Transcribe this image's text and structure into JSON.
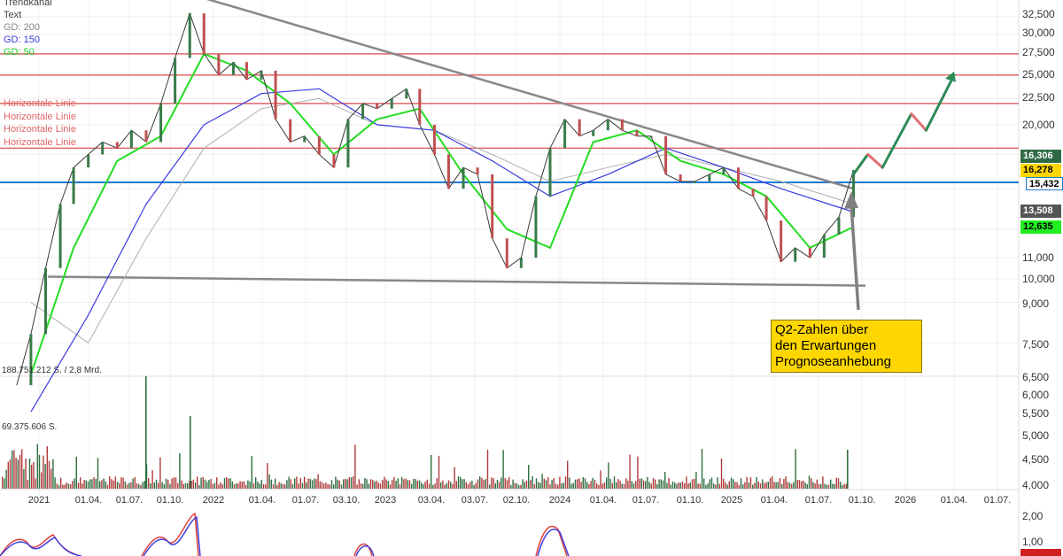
{
  "legend": {
    "title": "Trendkanal",
    "text": "Text",
    "gd200": "GD: 200",
    "gd150": "GD: 150",
    "gd50": "GD: 50",
    "colors": {
      "gd200": "#aaaaaa",
      "gd150": "#3a3ae0",
      "gd50": "#22dd22"
    }
  },
  "horizontal_line_labels": [
    "Horizontale Linie",
    "Horizontale Linie",
    "Horizontale Linie",
    "Horizontale Linie"
  ],
  "annotation": {
    "lines": [
      "Q2-Zahlen über",
      "den Erwartungen",
      "Prognoseanhebung"
    ]
  },
  "volume_labels": {
    "upper": "188.751.212 S. / 2,8 Mrd.",
    "lower": "69.375.606 S."
  },
  "price_tags": [
    {
      "value": "16,306",
      "bg": "#2e6b44",
      "fg": "#ffffff"
    },
    {
      "value": "16,278",
      "bg": "#ffd700",
      "fg": "#000000"
    },
    {
      "value": "15,432",
      "bg": "#ffffff",
      "fg": "#000000"
    },
    {
      "value": "13,508",
      "bg": "#555555",
      "fg": "#ffffff"
    },
    {
      "value": "12,635",
      "bg": "#22ee22",
      "fg": "#000000"
    }
  ],
  "chart_data": {
    "type": "line",
    "y_scale": "log",
    "y_ticks": [
      "32,500",
      "30,000",
      "27,500",
      "25,000",
      "22,500",
      "20,000",
      "16,306",
      "13,508",
      "11,000",
      "10,000",
      "9,000",
      "7,500",
      "6,500",
      "6,000",
      "5,500",
      "5,000",
      "4,500",
      "4,000",
      "2,00",
      "1,00"
    ],
    "x_ticks": [
      "2021",
      "01.04.",
      "01.07.",
      "01.10.",
      "2022",
      "01.04.",
      "01.07.",
      "03.10.",
      "2023",
      "03.04.",
      "03.07.",
      "02.10.",
      "2024",
      "01.04.",
      "01.07.",
      "01.10.",
      "2025",
      "01.04.",
      "01.07.",
      "01.10.",
      "2026",
      "01.04.",
      "01.07."
    ],
    "horizontal_lines": [
      {
        "value": 27500,
        "color": "#e06666"
      },
      {
        "value": 25000,
        "color": "#e06666"
      },
      {
        "value": 22000,
        "color": "#e06666"
      },
      {
        "value": 18000,
        "color": "#e06666"
      },
      {
        "value": 15432,
        "color": "#1e78d0"
      }
    ],
    "trendlines": [
      {
        "name": "resistance",
        "from": {
          "date": "2021-11-15",
          "value": 36000
        },
        "to": {
          "date": "2025-09-15",
          "value": 15000
        }
      },
      {
        "name": "support",
        "from": {
          "date": "2021-01-20",
          "value": 10100
        },
        "to": {
          "date": "2025-10-10",
          "value": 9700
        }
      }
    ],
    "price_series": [
      {
        "date": "2020-11",
        "value": 6200
      },
      {
        "date": "2020-12",
        "value": 7800
      },
      {
        "date": "2021-01",
        "value": 10500
      },
      {
        "date": "2021-02",
        "value": 14000
      },
      {
        "date": "2021-03",
        "value": 16500
      },
      {
        "date": "2021-04",
        "value": 17500
      },
      {
        "date": "2021-05",
        "value": 18500
      },
      {
        "date": "2021-06",
        "value": 18000
      },
      {
        "date": "2021-07",
        "value": 19500
      },
      {
        "date": "2021-08",
        "value": 18500
      },
      {
        "date": "2021-09",
        "value": 22000
      },
      {
        "date": "2021-10",
        "value": 27000
      },
      {
        "date": "2021-11",
        "value": 33000
      },
      {
        "date": "2021-12",
        "value": 27500
      },
      {
        "date": "2022-01",
        "value": 25000
      },
      {
        "date": "2022-02",
        "value": 26500
      },
      {
        "date": "2022-03",
        "value": 24500
      },
      {
        "date": "2022-04",
        "value": 25500
      },
      {
        "date": "2022-05",
        "value": 20500
      },
      {
        "date": "2022-06",
        "value": 18500
      },
      {
        "date": "2022-07",
        "value": 19000
      },
      {
        "date": "2022-08",
        "value": 17500
      },
      {
        "date": "2022-09",
        "value": 16500
      },
      {
        "date": "2022-10",
        "value": 20500
      },
      {
        "date": "2022-11",
        "value": 22000
      },
      {
        "date": "2022-12",
        "value": 21500
      },
      {
        "date": "2023-01",
        "value": 22500
      },
      {
        "date": "2023-02",
        "value": 23500
      },
      {
        "date": "2023-03",
        "value": 20000
      },
      {
        "date": "2023-04",
        "value": 17500
      },
      {
        "date": "2023-05",
        "value": 15000
      },
      {
        "date": "2023-06",
        "value": 16500
      },
      {
        "date": "2023-07",
        "value": 16000
      },
      {
        "date": "2023-08",
        "value": 12000
      },
      {
        "date": "2023-09",
        "value": 10500
      },
      {
        "date": "2023-10",
        "value": 11000
      },
      {
        "date": "2023-11",
        "value": 14500
      },
      {
        "date": "2023-12",
        "value": 18000
      },
      {
        "date": "2024-01",
        "value": 20500
      },
      {
        "date": "2024-02",
        "value": 19000
      },
      {
        "date": "2024-03",
        "value": 19500
      },
      {
        "date": "2024-04",
        "value": 20500
      },
      {
        "date": "2024-05",
        "value": 19500
      },
      {
        "date": "2024-06",
        "value": 19000
      },
      {
        "date": "2024-07",
        "value": 19000
      },
      {
        "date": "2024-08",
        "value": 16000
      },
      {
        "date": "2024-09",
        "value": 15500
      },
      {
        "date": "2024-10",
        "value": 15500
      },
      {
        "date": "2024-11",
        "value": 16000
      },
      {
        "date": "2024-12",
        "value": 16500
      },
      {
        "date": "2025-01",
        "value": 15000
      },
      {
        "date": "2025-02",
        "value": 14500
      },
      {
        "date": "2025-03",
        "value": 13000
      },
      {
        "date": "2025-04",
        "value": 10800
      },
      {
        "date": "2025-05",
        "value": 11500
      },
      {
        "date": "2025-06",
        "value": 11000
      },
      {
        "date": "2025-07",
        "value": 12200
      },
      {
        "date": "2025-08",
        "value": 13200
      },
      {
        "date": "2025-09",
        "value": 16306
      }
    ],
    "gd50_series": [
      {
        "date": "2020-12",
        "value": 6500
      },
      {
        "date": "2021-03",
        "value": 11500
      },
      {
        "date": "2021-06",
        "value": 17000
      },
      {
        "date": "2021-09",
        "value": 19000
      },
      {
        "date": "2021-12",
        "value": 27500
      },
      {
        "date": "2022-03",
        "value": 25500
      },
      {
        "date": "2022-06",
        "value": 22000
      },
      {
        "date": "2022-09",
        "value": 17500
      },
      {
        "date": "2022-12",
        "value": 20500
      },
      {
        "date": "2023-03",
        "value": 21500
      },
      {
        "date": "2023-06",
        "value": 16000
      },
      {
        "date": "2023-09",
        "value": 12500
      },
      {
        "date": "2023-12",
        "value": 11500
      },
      {
        "date": "2024-03",
        "value": 18500
      },
      {
        "date": "2024-06",
        "value": 19500
      },
      {
        "date": "2024-09",
        "value": 17000
      },
      {
        "date": "2024-12",
        "value": 16000
      },
      {
        "date": "2025-03",
        "value": 14500
      },
      {
        "date": "2025-06",
        "value": 11500
      },
      {
        "date": "2025-09",
        "value": 12635
      }
    ],
    "gd150_series": [
      {
        "date": "2020-12",
        "value": 5500
      },
      {
        "date": "2021-04",
        "value": 8500
      },
      {
        "date": "2021-08",
        "value": 14000
      },
      {
        "date": "2021-12",
        "value": 20000
      },
      {
        "date": "2022-04",
        "value": 23000
      },
      {
        "date": "2022-08",
        "value": 23500
      },
      {
        "date": "2022-12",
        "value": 20000
      },
      {
        "date": "2023-04",
        "value": 19500
      },
      {
        "date": "2023-08",
        "value": 17000
      },
      {
        "date": "2023-12",
        "value": 14500
      },
      {
        "date": "2024-04",
        "value": 16000
      },
      {
        "date": "2024-08",
        "value": 18000
      },
      {
        "date": "2024-12",
        "value": 16500
      },
      {
        "date": "2025-04",
        "value": 15000
      },
      {
        "date": "2025-09",
        "value": 13508
      }
    ],
    "gd200_series": [
      {
        "date": "2020-12",
        "value": 9000
      },
      {
        "date": "2021-04",
        "value": 7500
      },
      {
        "date": "2021-08",
        "value": 12000
      },
      {
        "date": "2021-12",
        "value": 18000
      },
      {
        "date": "2022-04",
        "value": 21500
      },
      {
        "date": "2022-08",
        "value": 22500
      },
      {
        "date": "2022-12",
        "value": 20000
      },
      {
        "date": "2023-04",
        "value": 19500
      },
      {
        "date": "2023-08",
        "value": 17500
      },
      {
        "date": "2023-12",
        "value": 15500
      },
      {
        "date": "2024-04",
        "value": 16500
      },
      {
        "date": "2024-08",
        "value": 17500
      },
      {
        "date": "2024-12",
        "value": 16500
      },
      {
        "date": "2025-04",
        "value": 15500
      },
      {
        "date": "2025-09",
        "value": 14000
      }
    ],
    "forecast_path": [
      {
        "date": "2025-09",
        "value": 16000
      },
      {
        "date": "2025-10",
        "value": 17500
      },
      {
        "date": "2025-11",
        "value": 16500
      },
      {
        "date": "2026-01",
        "value": 21000
      },
      {
        "date": "2026-02",
        "value": 19500
      },
      {
        "date": "2026-04",
        "value": 25000
      }
    ],
    "grid": true,
    "legend": "top-left"
  }
}
